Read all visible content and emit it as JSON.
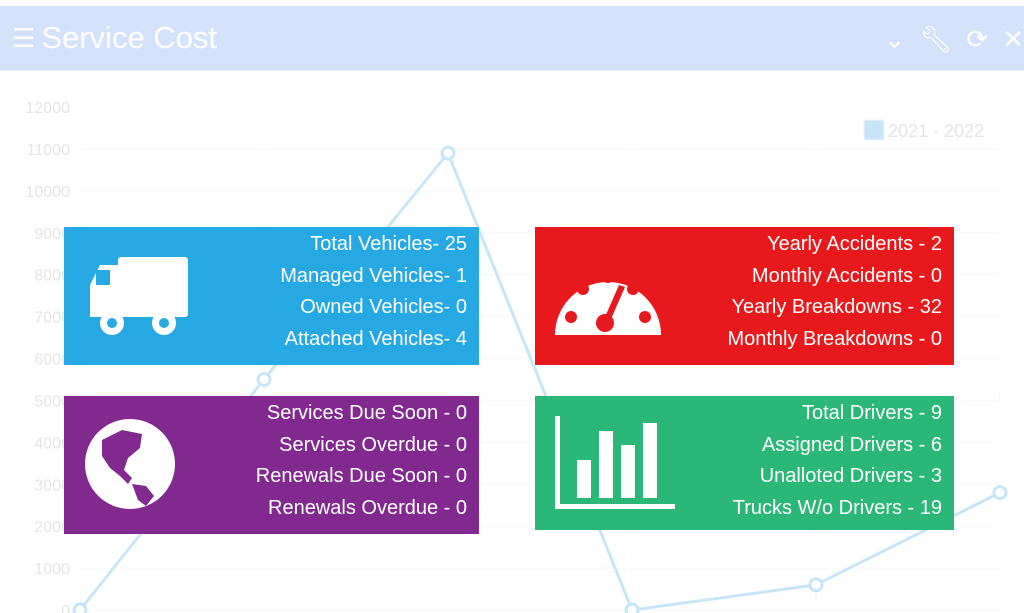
{
  "header": {
    "title": "Service Cost",
    "icons": [
      "menu-icon",
      "chevron-down-icon",
      "wrench-icon",
      "refresh-icon",
      "close-icon"
    ]
  },
  "chart_data": {
    "type": "line",
    "ylim": [
      0,
      12000
    ],
    "yticks": [
      "0",
      "1000",
      "2000",
      "3000",
      "4000",
      "5000",
      "6000",
      "7000",
      "8000",
      "9000",
      "10000",
      "11000",
      "12000"
    ],
    "series": [
      {
        "name": "2021 - 2022",
        "values": [
          0,
          5500,
          10900,
          0,
          600,
          2800
        ],
        "color": "#c6e6f8"
      }
    ],
    "legend": "top-right",
    "grid": true
  },
  "cards": [
    {
      "color": "#26a9e2",
      "icon": "truck-icon",
      "lines": [
        "Total Vehicles- 25",
        "Managed Vehicles- 1",
        "Owned Vehicles- 0",
        "Attached Vehicles- 4"
      ]
    },
    {
      "color": "#e8191c",
      "icon": "speedometer-icon",
      "lines": [
        "Yearly Accidents - 2",
        "Monthly Accidents - 0",
        "Yearly Breakdowns - 32",
        "Monthly Breakdowns - 0"
      ]
    },
    {
      "color": "#81298f",
      "icon": "globe-icon",
      "lines": [
        "Services Due Soon - 0",
        "Services Overdue - 0",
        "Renewals Due Soon - 0",
        "Renewals Overdue - 0"
      ]
    },
    {
      "color": "#2ab777",
      "icon": "bar-chart-icon",
      "lines": [
        "Total Drivers - 9",
        "Assigned Drivers - 6",
        "Unalloted Drivers - 3",
        "Trucks W/o Drivers - 19"
      ]
    }
  ]
}
